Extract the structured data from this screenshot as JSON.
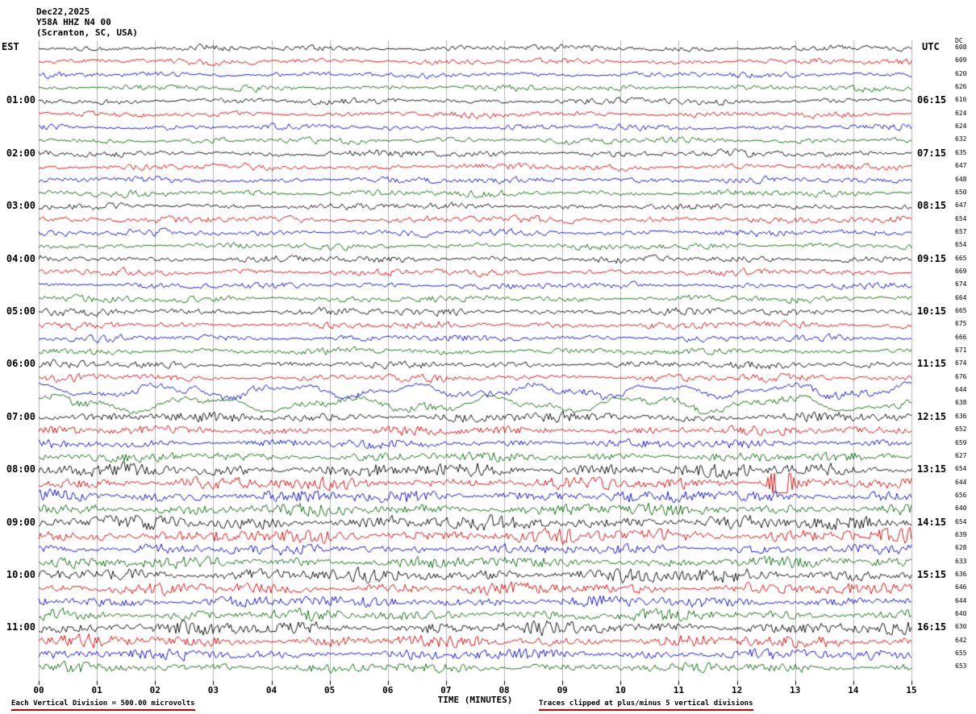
{
  "header": {
    "date": "Dec22,2025",
    "station": "Y58A HHZ N4 00",
    "location": "(Scranton, SC, USA)"
  },
  "axes": {
    "left_label": "EST",
    "right_label": "UTC",
    "dc_label": "DC",
    "x_axis_title": "TIME (MINUTES)",
    "x_ticks": [
      "00",
      "01",
      "02",
      "03",
      "04",
      "05",
      "06",
      "07",
      "08",
      "09",
      "10",
      "11",
      "12",
      "13",
      "14",
      "15"
    ]
  },
  "footer": {
    "left": "Each Vertical Division =  500.00 microvolts",
    "right": "Traces clipped at plus/minus 5 vertical divisions"
  },
  "chart_data": {
    "type": "line",
    "title": "Y58A HHZ N4 00 (Scranton, SC, USA) helicorder record, Dec22,2025",
    "xlabel": "TIME (MINUTES)",
    "x_range_minutes": [
      0,
      15
    ],
    "minutes_per_line": 15,
    "traces_per_hour": 4,
    "vertical_division_microvolts": 500.0,
    "clip_divisions": 5,
    "trace_colors": [
      "#000000",
      "#dd0000",
      "#0000cc",
      "#006600"
    ],
    "grid": true,
    "rows": [
      {
        "dc": "608",
        "amp": 4.2
      },
      {
        "dc": "609",
        "amp": 4.0
      },
      {
        "dc": "620",
        "amp": 3.8
      },
      {
        "dc": "626",
        "amp": 4.0
      },
      {
        "est": "01:00",
        "utc": "06:15",
        "dc": "616",
        "amp": 4.4
      },
      {
        "dc": "624",
        "amp": 4.2
      },
      {
        "dc": "624",
        "amp": 4.0
      },
      {
        "dc": "632",
        "amp": 4.2
      },
      {
        "est": "02:00",
        "utc": "07:15",
        "dc": "635",
        "amp": 4.6
      },
      {
        "dc": "647",
        "amp": 4.4
      },
      {
        "dc": "648",
        "amp": 4.2
      },
      {
        "dc": "650",
        "amp": 4.4
      },
      {
        "est": "03:00",
        "utc": "08:15",
        "dc": "647",
        "amp": 4.6
      },
      {
        "dc": "654",
        "amp": 4.6
      },
      {
        "dc": "657",
        "amp": 4.4
      },
      {
        "dc": "654",
        "amp": 4.4
      },
      {
        "est": "04:00",
        "utc": "09:15",
        "dc": "665",
        "amp": 4.8
      },
      {
        "dc": "669",
        "amp": 4.6
      },
      {
        "dc": "674",
        "amp": 4.4
      },
      {
        "dc": "664",
        "amp": 4.6
      },
      {
        "est": "05:00",
        "utc": "10:15",
        "dc": "665",
        "amp": 5.0
      },
      {
        "dc": "675",
        "amp": 4.8
      },
      {
        "dc": "666",
        "amp": 4.4
      },
      {
        "dc": "671",
        "amp": 4.6
      },
      {
        "est": "06:00",
        "utc": "11:15",
        "dc": "674",
        "amp": 5.2
      },
      {
        "dc": "676",
        "amp": 5.0
      },
      {
        "dc": "644",
        "amp": 5.0,
        "lf": 6,
        "lfc": 7
      },
      {
        "dc": "638",
        "amp": 5.0,
        "lf": 7,
        "lfc": 6
      },
      {
        "est": "07:00",
        "utc": "12:15",
        "dc": "636",
        "amp": 5.5
      },
      {
        "dc": "652",
        "amp": 5.2
      },
      {
        "dc": "659",
        "amp": 5.0
      },
      {
        "dc": "627",
        "amp": 5.2
      },
      {
        "est": "08:00",
        "utc": "13:15",
        "dc": "654",
        "amp": 8.0
      },
      {
        "dc": "644",
        "amp": 7.0,
        "spikes": [
          {
            "m": 12.75,
            "a": 22
          }
        ]
      },
      {
        "dc": "656",
        "amp": 7.0
      },
      {
        "dc": "640",
        "amp": 7.0
      },
      {
        "est": "09:00",
        "utc": "14:15",
        "dc": "654",
        "amp": 8.0
      },
      {
        "dc": "639",
        "amp": 8.0
      },
      {
        "dc": "628",
        "amp": 6.0
      },
      {
        "dc": "633",
        "amp": 6.5
      },
      {
        "est": "10:00",
        "utc": "15:15",
        "dc": "636",
        "amp": 8.0
      },
      {
        "dc": "646",
        "amp": 6.5
      },
      {
        "dc": "644",
        "amp": 6.5
      },
      {
        "dc": "640",
        "amp": 6.5
      },
      {
        "est": "11:00",
        "utc": "16:15",
        "dc": "630",
        "amp": 7.5
      },
      {
        "dc": "642",
        "amp": 7.0
      },
      {
        "dc": "655",
        "amp": 6.0
      },
      {
        "dc": "653",
        "amp": 5.5
      }
    ]
  }
}
